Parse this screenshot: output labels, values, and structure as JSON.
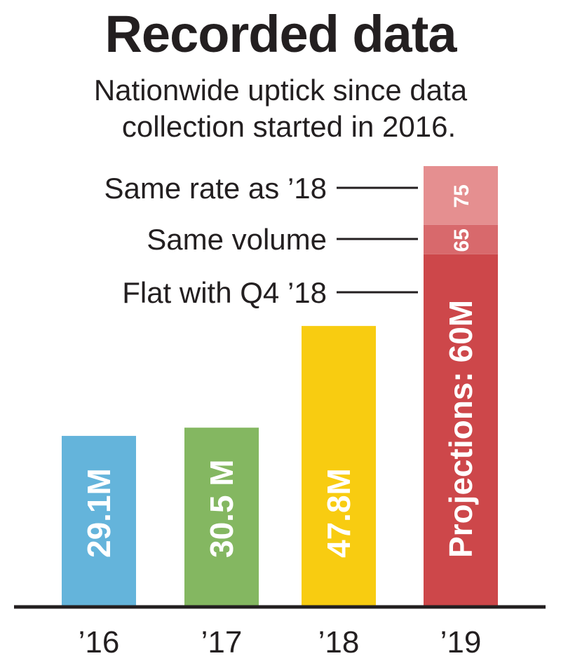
{
  "title": "Recorded data",
  "subtitle_lines": [
    "Nationwide uptick since data",
    "collection started in 2016."
  ],
  "colors": {
    "bar_16": "#64b4db",
    "bar_17": "#84b761",
    "bar_18": "#f8cc11",
    "projection_base": "#cd474a",
    "projection_mid": "#d8696c",
    "projection_top": "#e58f90",
    "baseline": "#231f20"
  },
  "chart_data": {
    "type": "bar",
    "categories": [
      "’16",
      "’17",
      "’18",
      "’19"
    ],
    "values": [
      29.1,
      30.5,
      47.8,
      60
    ],
    "bar_labels": [
      "29.1M",
      "30.5 M",
      "47.8M",
      "Projections: 60M"
    ],
    "ylim": [
      0,
      75
    ],
    "projections": [
      {
        "label": "Flat with Q4 ’18",
        "value": 60,
        "segment_label": ""
      },
      {
        "label": "Same volume",
        "value": 65,
        "segment_label": "65"
      },
      {
        "label": "Same rate as ’18",
        "value": 75,
        "segment_label": "75"
      }
    ]
  }
}
